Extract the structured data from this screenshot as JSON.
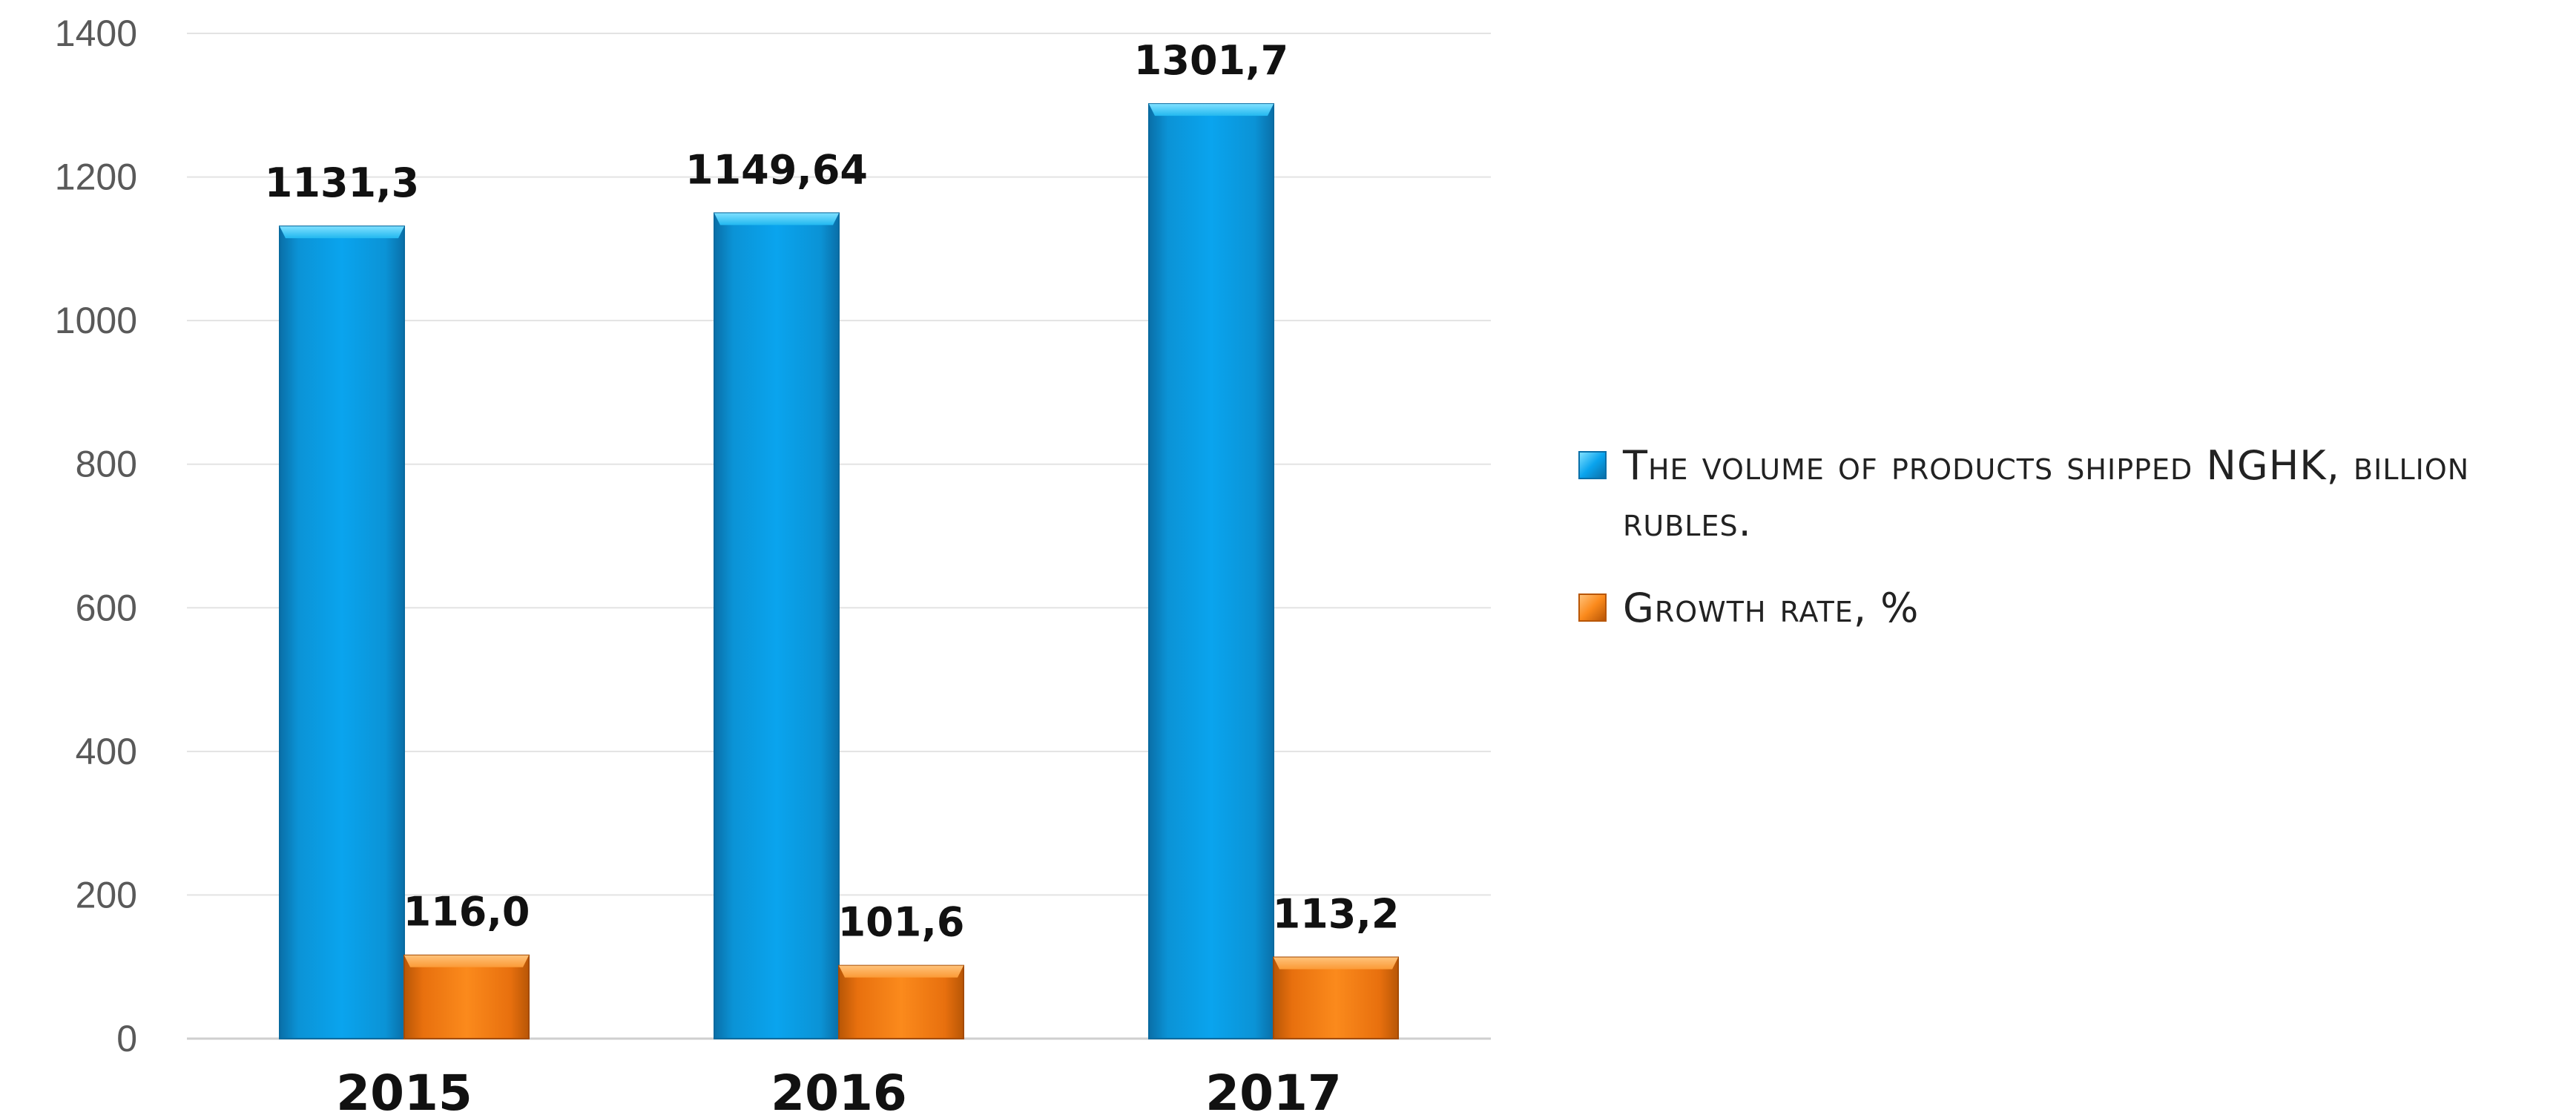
{
  "chart_data": {
    "type": "bar",
    "categories": [
      "2015",
      "2016",
      "2017"
    ],
    "series": [
      {
        "name": "The volume of products shipped NGHK, billion rubles.",
        "values": [
          1131.3,
          1149.64,
          1301.7
        ],
        "labels": [
          "1131,3",
          "1149,64",
          "1301,7"
        ],
        "color": "#0a9ee6"
      },
      {
        "name": "Growth rate, %",
        "values": [
          116.0,
          101.6,
          113.2
        ],
        "labels": [
          "116,0",
          "101,6",
          "113,2"
        ],
        "color": "#f47a14"
      }
    ],
    "yticks": [
      "0",
      "200",
      "400",
      "600",
      "800",
      "1000",
      "1200",
      "1400"
    ],
    "ylim": [
      0,
      1400
    ],
    "grid": true,
    "legend_position": "right"
  }
}
